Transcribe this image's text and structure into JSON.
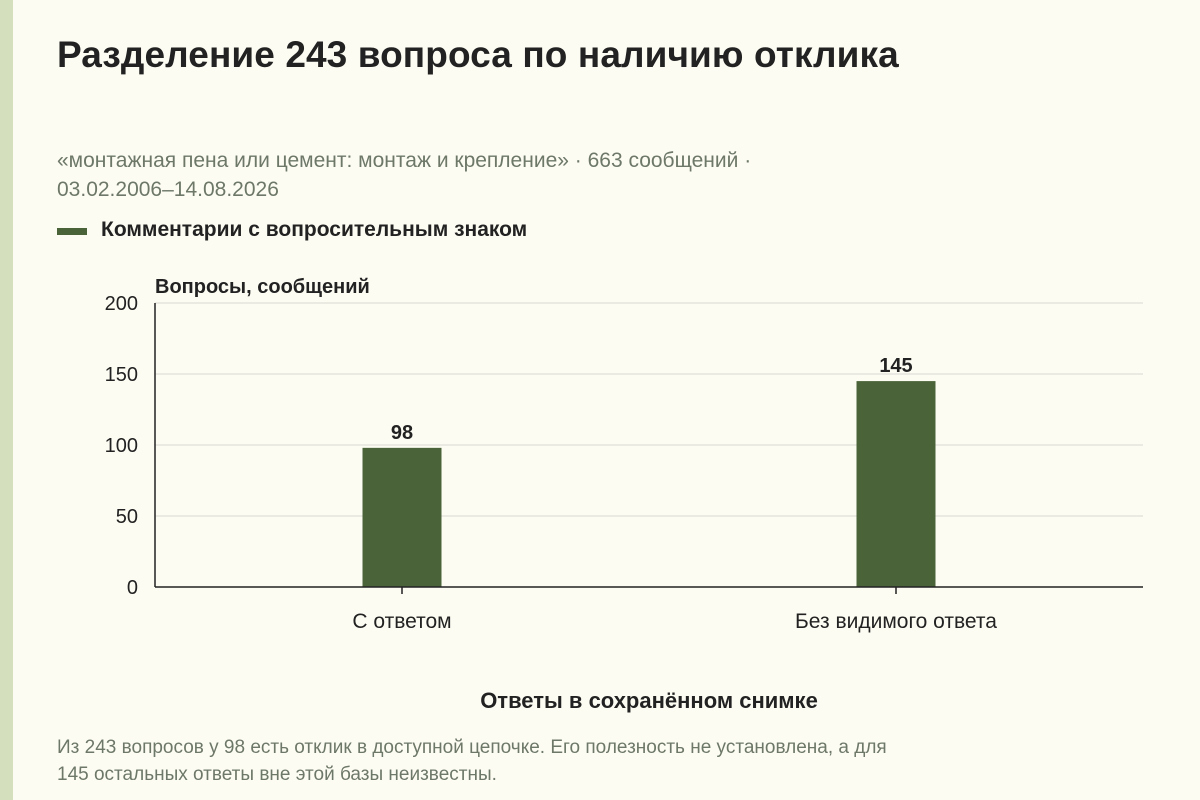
{
  "title": "Разделение 243 вопроса по наличию отклика",
  "subtitle_line1": "«монтажная пена или цемент: монтаж и крепление» · 663 сообщений ·",
  "subtitle_line2": "03.02.2006–14.08.2026",
  "legend": {
    "label": "Комментарии с вопросительным знаком"
  },
  "footnote_line1": "Из 243 вопросов у 98 есть отклик в доступной цепочке. Его полезность не установлена, а для",
  "footnote_line2": "145 остальных ответы вне этой базы неизвестны.",
  "colors": {
    "bar": "#4a6338",
    "background": "#fdfcf3",
    "side_stripe": "#d3dfbd",
    "gridline": "#d9d9d0",
    "axis": "#222222",
    "muted_text": "#6d7868"
  },
  "chart_data": {
    "type": "bar",
    "categories": [
      "С ответом",
      "Без видимого ответа"
    ],
    "series": [
      {
        "name": "Комментарии с вопросительным знаком",
        "values": [
          98,
          145
        ]
      }
    ],
    "data_labels": [
      "98",
      "145"
    ],
    "ylabel": "Вопросы, сообщений",
    "xlabel": "Ответы в сохранённом снимке",
    "ylim": [
      0,
      200
    ],
    "yticks": [
      0,
      50,
      100,
      150,
      200
    ],
    "grid": true,
    "legend_position": "top-left"
  }
}
